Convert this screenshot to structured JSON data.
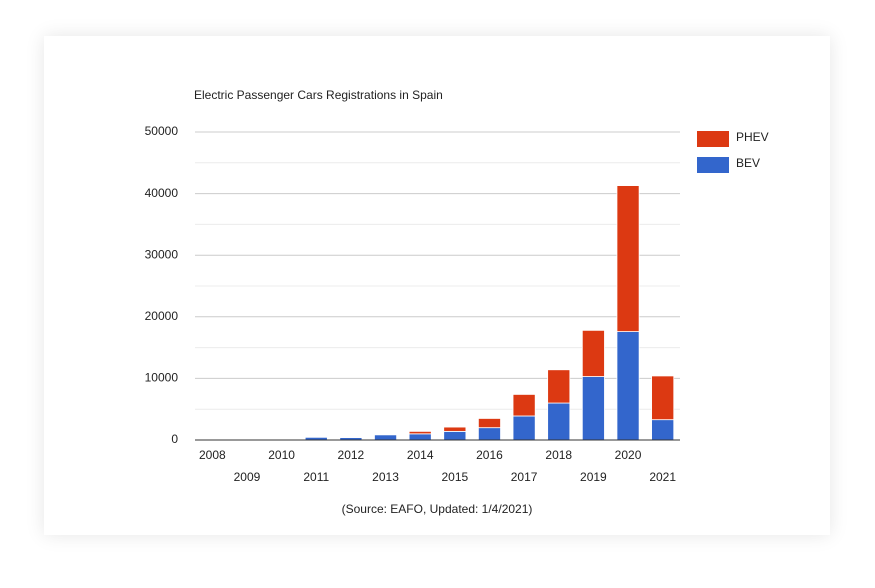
{
  "chart_data": {
    "type": "stacked_bar",
    "title": "Electric Passenger Cars Registrations in Spain",
    "source": "(Source: EAFO, Updated: 1/4/2021)",
    "categories": [
      "2008",
      "2009",
      "2010",
      "2011",
      "2012",
      "2013",
      "2014",
      "2015",
      "2016",
      "2017",
      "2018",
      "2019",
      "2020",
      "2021"
    ],
    "series": [
      {
        "name": "PHEV",
        "color": "#dc3912",
        "values": [
          0,
          0,
          0,
          100,
          100,
          100,
          400,
          700,
          1500,
          3500,
          5400,
          7500,
          23700,
          7100
        ]
      },
      {
        "name": "BEV",
        "color": "#3366cc",
        "values": [
          20,
          10,
          10,
          450,
          400,
          850,
          1000,
          1400,
          2000,
          3900,
          6000,
          10300,
          17600,
          3300
        ]
      }
    ],
    "ylim": [
      0,
      50000
    ],
    "yticks": [
      0,
      10000,
      20000,
      30000,
      40000,
      50000
    ],
    "minor_yticks": [
      5000,
      15000,
      25000,
      35000,
      45000
    ],
    "grid": true,
    "legend": "right"
  }
}
